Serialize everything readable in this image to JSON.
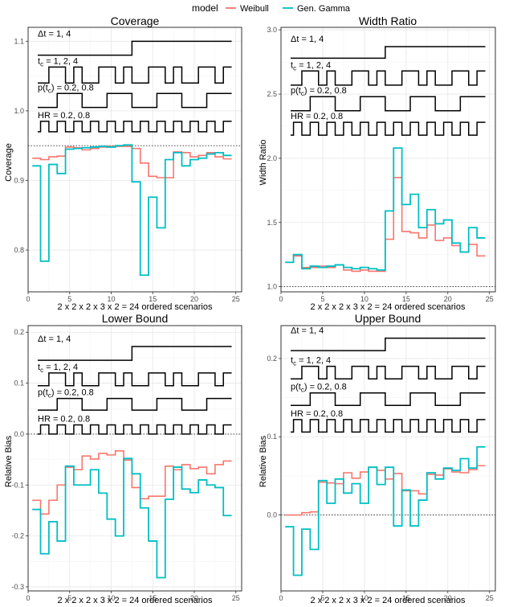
{
  "legend": {
    "title": "model",
    "items": [
      {
        "label": "Weibull",
        "color": "#F8766D"
      },
      {
        "label": "Gen. Gamma",
        "color": "#00BFC4"
      }
    ]
  },
  "chart_data": [
    {
      "type": "line",
      "title": "Coverage",
      "xlabel": "2 x 2 x 2 x 3 x 2 = 24 ordered scenarios",
      "ylabel": "Coverage",
      "xlim": [
        0,
        25.7
      ],
      "ylim": [
        0.74,
        1.12
      ],
      "xticks": [
        0,
        5,
        10,
        15,
        20,
        25
      ],
      "yticks": [
        0.8,
        0.9,
        1.0,
        1.1
      ],
      "ytick_labels": [
        "0.8",
        "0.9",
        "1.0",
        "1.1"
      ],
      "ref_line": 0.95,
      "annotations": {
        "dt": "Δt = 1,  4",
        "tc": "t",
        "tc_sub": "c",
        "tc_rest": " = 1,  2,  4",
        "p": "p(t",
        "p_sub": "c",
        "p_rest": ") = 0.2,  0.8",
        "hr": "HR = 0.2,  0.8"
      },
      "ann_levels": [
        1.08,
        1.1,
        1.04,
        1.063,
        1.005,
        1.025,
        0.97,
        0.985
      ],
      "series": [
        {
          "name": "Weibull",
          "color": "#F8766D",
          "x": [
            1,
            2,
            3,
            4,
            5,
            6,
            7,
            8,
            9,
            10,
            11,
            12,
            13,
            14,
            15,
            16,
            17,
            18,
            19,
            20,
            21,
            22,
            23,
            24
          ],
          "values": [
            0.932,
            0.93,
            0.934,
            0.935,
            0.948,
            0.947,
            0.944,
            0.946,
            0.948,
            0.949,
            0.949,
            0.949,
            0.946,
            0.925,
            0.906,
            0.904,
            0.904,
            0.941,
            0.94,
            0.934,
            0.936,
            0.94,
            0.934,
            0.931
          ]
        },
        {
          "name": "Gen. Gamma",
          "color": "#00BFC4",
          "x": [
            1,
            2,
            3,
            4,
            5,
            6,
            7,
            8,
            9,
            10,
            11,
            12,
            13,
            14,
            15,
            16,
            17,
            18,
            19,
            20,
            21,
            22,
            23,
            24
          ],
          "values": [
            0.921,
            0.784,
            0.923,
            0.91,
            0.945,
            0.946,
            0.947,
            0.948,
            0.949,
            0.948,
            0.95,
            0.951,
            0.898,
            0.764,
            0.876,
            0.832,
            0.93,
            0.94,
            0.921,
            0.93,
            0.932,
            0.938,
            0.94,
            0.936
          ]
        }
      ]
    },
    {
      "type": "line",
      "title": "Width Ratio",
      "xlabel": "2 x 2 x 2 x 3 x 2 = 24 ordered scenarios",
      "ylabel": "Width Ratio",
      "xlim": [
        0,
        25.7
      ],
      "ylim": [
        0.96,
        3.02
      ],
      "xticks": [
        0,
        5,
        10,
        15,
        20,
        25
      ],
      "yticks": [
        1.0,
        1.5,
        2.0,
        2.5,
        3.0
      ],
      "ytick_labels": [
        "1.0",
        "1.5",
        "2.0",
        "2.5",
        "3.0"
      ],
      "ref_line": 1.0,
      "annotations": {
        "dt": "Δt = 1,  4",
        "tc": "t",
        "tc_sub": "c",
        "tc_rest": " = 1,  2,  4",
        "p": "p(t",
        "p_sub": "c",
        "p_rest": ") = 0.2,  0.8",
        "hr": "HR = 0.2,  0.8"
      },
      "ann_levels": [
        2.78,
        2.87,
        2.57,
        2.68,
        2.37,
        2.48,
        2.18,
        2.28
      ],
      "series": [
        {
          "name": "Weibull",
          "color": "#F8766D",
          "x": [
            1,
            2,
            3,
            4,
            5,
            6,
            7,
            8,
            9,
            10,
            11,
            12,
            13,
            14,
            15,
            16,
            17,
            18,
            19,
            20,
            21,
            22,
            23,
            24
          ],
          "values": [
            1.19,
            1.24,
            1.15,
            1.15,
            1.16,
            1.15,
            1.17,
            1.13,
            1.12,
            1.13,
            1.12,
            1.12,
            1.37,
            1.85,
            1.43,
            1.42,
            1.38,
            1.48,
            1.36,
            1.38,
            1.32,
            1.27,
            1.33,
            1.24
          ]
        },
        {
          "name": "Gen. Gamma",
          "color": "#00BFC4",
          "x": [
            1,
            2,
            3,
            4,
            5,
            6,
            7,
            8,
            9,
            10,
            11,
            12,
            13,
            14,
            15,
            16,
            17,
            18,
            19,
            20,
            21,
            22,
            23,
            24
          ],
          "values": [
            1.19,
            1.25,
            1.14,
            1.16,
            1.15,
            1.16,
            1.17,
            1.15,
            1.14,
            1.15,
            1.14,
            1.13,
            1.59,
            2.08,
            1.64,
            1.72,
            1.46,
            1.6,
            1.49,
            1.52,
            1.34,
            1.27,
            1.46,
            1.38
          ]
        }
      ]
    },
    {
      "type": "line",
      "title": "Lower Bound",
      "xlabel": "2 x 2 x 2 x 3 x 2 = 24 ordered scenarios",
      "ylabel": "Relative Bias",
      "xlim": [
        0,
        25.7
      ],
      "ylim": [
        -0.308,
        0.213
      ],
      "xticks": [
        0,
        5,
        10,
        15,
        20,
        25
      ],
      "yticks": [
        -0.3,
        -0.2,
        -0.1,
        0.0,
        0.1,
        0.2
      ],
      "ytick_labels": [
        "-0.3",
        "-0.2",
        "-0.1",
        "0.0",
        "0.1",
        "0.2"
      ],
      "ref_line": 0.0,
      "annotations": {
        "dt": "Δt = 1,  4",
        "tc": "t",
        "tc_sub": "c",
        "tc_rest": " = 1,  2,  4",
        "p": "p(t",
        "p_sub": "c",
        "p_rest": ") = 0.2,  0.8",
        "hr": "HR = 0.2,  0.8"
      },
      "ann_levels": [
        0.145,
        0.172,
        0.095,
        0.12,
        0.047,
        0.07,
        0.0,
        0.018
      ],
      "series": [
        {
          "name": "Weibull",
          "color": "#F8766D",
          "x": [
            1,
            2,
            3,
            4,
            5,
            6,
            7,
            8,
            9,
            10,
            11,
            12,
            13,
            14,
            15,
            16,
            17,
            18,
            19,
            20,
            21,
            22,
            23,
            24
          ],
          "values": [
            -0.13,
            -0.157,
            -0.13,
            -0.1,
            -0.065,
            -0.07,
            -0.043,
            -0.049,
            -0.038,
            -0.041,
            -0.033,
            -0.051,
            -0.105,
            -0.127,
            -0.122,
            -0.122,
            -0.063,
            -0.07,
            -0.06,
            -0.068,
            -0.065,
            -0.078,
            -0.06,
            -0.053
          ]
        },
        {
          "name": "Gen. Gamma",
          "color": "#00BFC4",
          "x": [
            1,
            2,
            3,
            4,
            5,
            6,
            7,
            8,
            9,
            10,
            11,
            12,
            13,
            14,
            15,
            16,
            17,
            18,
            19,
            20,
            21,
            22,
            23,
            24
          ],
          "values": [
            -0.148,
            -0.235,
            -0.172,
            -0.21,
            -0.063,
            -0.1,
            -0.1,
            -0.07,
            -0.116,
            -0.167,
            -0.2,
            -0.048,
            -0.078,
            -0.145,
            -0.21,
            -0.282,
            -0.128,
            -0.065,
            -0.108,
            -0.115,
            -0.09,
            -0.1,
            -0.105,
            -0.16
          ]
        }
      ]
    },
    {
      "type": "line",
      "title": "Upper Bound",
      "xlabel": "2 x 2 x 2 x 3 x 2 = 24 ordered scenarios",
      "ylabel": "Relative Bias",
      "xlim": [
        0,
        25.7
      ],
      "ylim": [
        -0.097,
        0.242
      ],
      "xticks": [
        0,
        5,
        10,
        15,
        20,
        25
      ],
      "yticks": [
        0.0,
        0.1,
        0.2
      ],
      "ytick_labels": [
        "0.0",
        "0.1",
        "0.2"
      ],
      "ref_line": 0.0,
      "annotations": {
        "dt": "Δt = 1,  4",
        "tc": "t",
        "tc_sub": "c",
        "tc_rest": " = 1,  2,  4",
        "p": "p(t",
        "p_sub": "c",
        "p_rest": ") = 0.2,  0.8",
        "hr": "HR = 0.2,  0.8"
      },
      "ann_levels": [
        0.21,
        0.226,
        0.174,
        0.19,
        0.14,
        0.156,
        0.106,
        0.122
      ],
      "series": [
        {
          "name": "Weibull",
          "color": "#F8766D",
          "x": [
            1,
            2,
            3,
            4,
            5,
            6,
            7,
            8,
            9,
            10,
            11,
            12,
            13,
            14,
            15,
            16,
            17,
            18,
            19,
            20,
            21,
            22,
            23,
            24
          ],
          "values": [
            0.0,
            0.0,
            0.003,
            0.004,
            0.042,
            0.041,
            0.04,
            0.054,
            0.047,
            0.055,
            0.061,
            0.057,
            0.046,
            0.053,
            0.031,
            0.031,
            0.027,
            0.052,
            0.051,
            0.059,
            0.055,
            0.054,
            0.058,
            0.063
          ]
        },
        {
          "name": "Gen. Gamma",
          "color": "#00BFC4",
          "x": [
            1,
            2,
            3,
            4,
            5,
            6,
            7,
            8,
            9,
            10,
            11,
            12,
            13,
            14,
            15,
            16,
            17,
            18,
            19,
            20,
            21,
            22,
            23,
            24
          ],
          "values": [
            -0.015,
            -0.077,
            -0.018,
            -0.044,
            0.044,
            0.015,
            0.046,
            0.028,
            0.04,
            0.015,
            0.061,
            0.039,
            0.061,
            -0.014,
            0.032,
            -0.014,
            0.019,
            0.054,
            0.046,
            0.06,
            0.057,
            0.072,
            0.06,
            0.087
          ]
        }
      ]
    }
  ]
}
